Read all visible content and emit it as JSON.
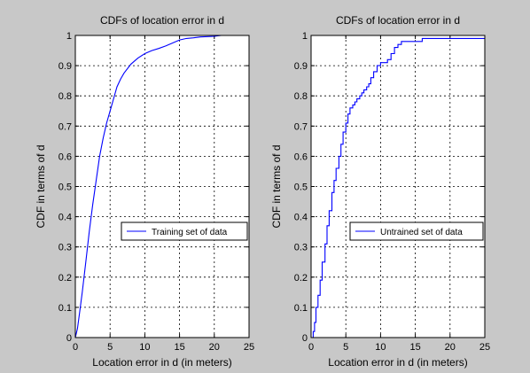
{
  "figure": {
    "background": "#c8c8c8"
  },
  "chart_data": [
    {
      "type": "line",
      "title": "CDFs of location error in d",
      "xlabel": "Location error in d (in meters)",
      "ylabel": "CDF in terms of d",
      "xlim": [
        0,
        25
      ],
      "ylim": [
        0,
        1
      ],
      "xticks": [
        "0",
        "5",
        "10",
        "15",
        "20",
        "25"
      ],
      "yticks": [
        "0",
        "0.1",
        "0.2",
        "0.3",
        "0.4",
        "0.5",
        "0.6",
        "0.7",
        "0.8",
        "0.9",
        "1"
      ],
      "grid": true,
      "legend_position": "center-right",
      "series": [
        {
          "name": "Training set of data",
          "color": "#0000ff",
          "step": false,
          "x": [
            0,
            0.3,
            0.6,
            1.0,
            1.5,
            2.0,
            2.5,
            3.0,
            3.5,
            4.0,
            4.5,
            5.0,
            5.5,
            6.0,
            6.5,
            7.0,
            8.0,
            9.0,
            10.0,
            11.0,
            12.0,
            13.0,
            14.0,
            15.0,
            16.0,
            17.0,
            18.0,
            20.0,
            21.0,
            25.0
          ],
          "y": [
            0,
            0.03,
            0.08,
            0.15,
            0.25,
            0.35,
            0.44,
            0.52,
            0.6,
            0.66,
            0.71,
            0.75,
            0.79,
            0.83,
            0.855,
            0.875,
            0.905,
            0.925,
            0.94,
            0.95,
            0.957,
            0.965,
            0.975,
            0.985,
            0.99,
            0.992,
            0.995,
            0.997,
            1.0,
            1.0
          ]
        }
      ]
    },
    {
      "type": "line",
      "title": "CDFs of location error in d",
      "xlabel": "Location error in d (in meters)",
      "ylabel": "CDF in terms of d",
      "xlim": [
        0,
        25
      ],
      "ylim": [
        0,
        1
      ],
      "xticks": [
        "0",
        "5",
        "10",
        "15",
        "20",
        "25"
      ],
      "yticks": [
        "0",
        "0.1",
        "0.2",
        "0.3",
        "0.4",
        "0.5",
        "0.6",
        "0.7",
        "0.8",
        "0.9",
        "1"
      ],
      "grid": true,
      "legend_position": "center-right",
      "series": [
        {
          "name": "Untrained set of data",
          "color": "#0000ff",
          "step": true,
          "x": [
            0,
            0.3,
            0.5,
            0.7,
            1.0,
            1.3,
            1.6,
            2.0,
            2.3,
            2.6,
            3.0,
            3.3,
            3.6,
            4.0,
            4.3,
            4.6,
            5.0,
            5.3,
            5.6,
            6.0,
            6.3,
            6.6,
            7.0,
            7.3,
            7.6,
            8.0,
            8.3,
            8.6,
            9.0,
            9.5,
            10.0,
            10.5,
            11.0,
            11.5,
            12.0,
            12.5,
            13.0,
            16.0,
            25.0
          ],
          "y": [
            0,
            0.02,
            0.05,
            0.1,
            0.14,
            0.19,
            0.25,
            0.31,
            0.37,
            0.42,
            0.48,
            0.52,
            0.56,
            0.6,
            0.64,
            0.68,
            0.71,
            0.74,
            0.76,
            0.77,
            0.78,
            0.79,
            0.8,
            0.81,
            0.82,
            0.83,
            0.84,
            0.86,
            0.88,
            0.9,
            0.91,
            0.91,
            0.92,
            0.94,
            0.96,
            0.97,
            0.98,
            0.99,
            0.99
          ]
        }
      ]
    }
  ]
}
